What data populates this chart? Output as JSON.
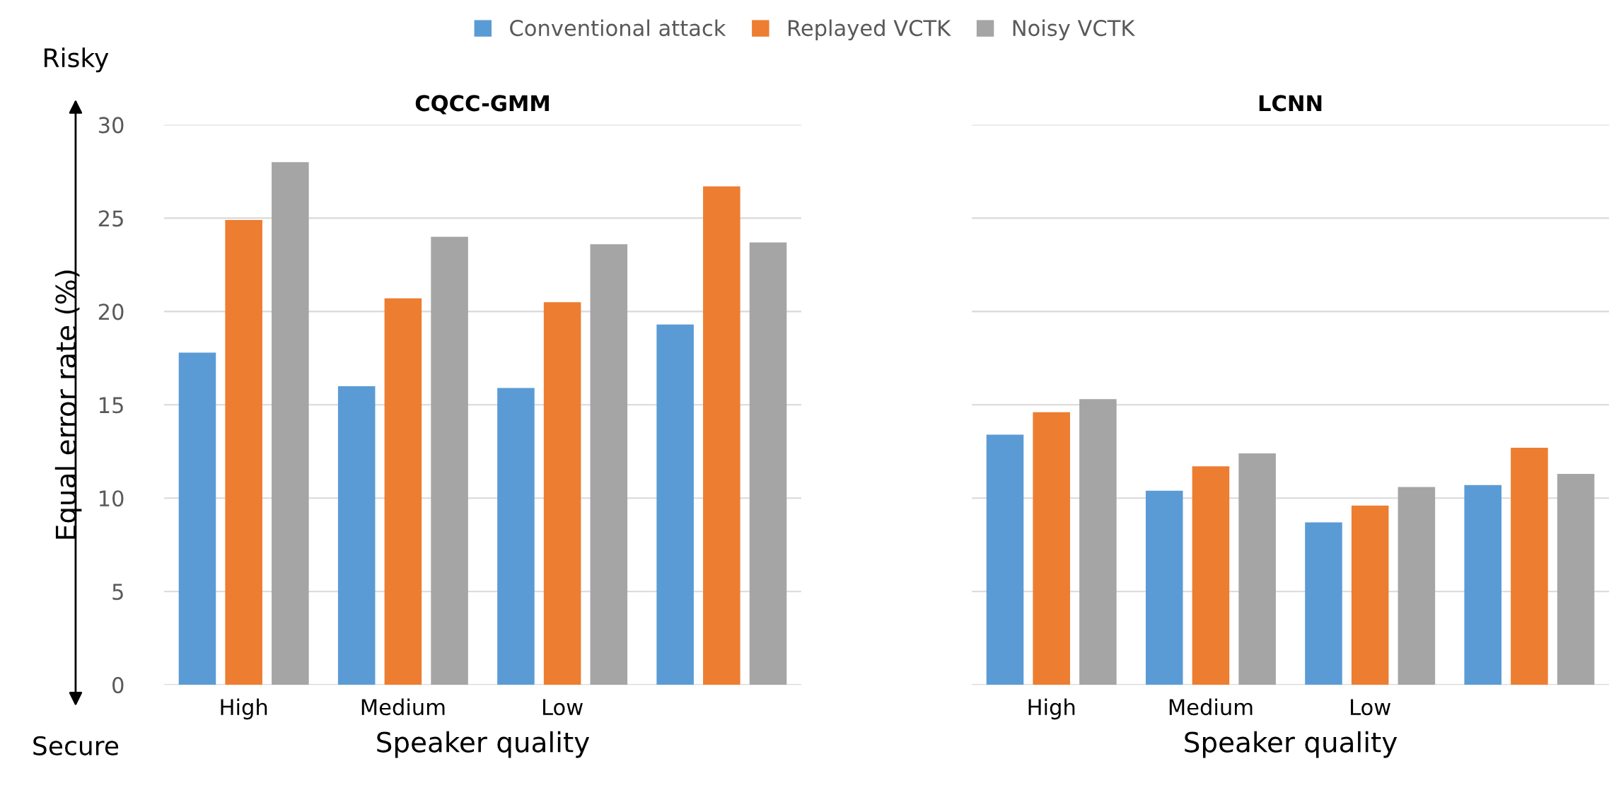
{
  "chart_data": [
    {
      "type": "bar",
      "title": "CQCC-GMM",
      "xlabel": "Speaker quality",
      "ylabel": "Equal error rate (%)",
      "annotations": [
        "Risky",
        "Secure"
      ],
      "categories": [
        "High",
        "Medium",
        "Low",
        null
      ],
      "series": [
        {
          "name": "Conventional attack",
          "color": "#5b9bd5",
          "values": [
            17.8,
            16.0,
            15.9,
            19.3
          ]
        },
        {
          "name": "Replayed VCTK",
          "color": "#ed7d31",
          "values": [
            24.9,
            20.7,
            20.5,
            26.7
          ]
        },
        {
          "name": "Noisy VCTK",
          "color": "#a5a5a5",
          "values": [
            28.0,
            24.0,
            23.6,
            23.7
          ]
        }
      ],
      "ylim": [
        0,
        30
      ],
      "yticks": [
        0,
        5,
        10,
        15,
        20,
        25,
        30
      ],
      "grid": "y",
      "legend": "top"
    },
    {
      "type": "bar",
      "title": "LCNN",
      "xlabel": "Speaker quality",
      "categories": [
        "High",
        "Medium",
        "Low",
        null
      ],
      "series": [
        {
          "color": "#5b9bd5",
          "values": [
            13.4,
            10.4,
            8.7,
            10.7
          ]
        },
        {
          "color": "#ed7d31",
          "values": [
            14.6,
            11.7,
            9.6,
            12.7
          ]
        },
        {
          "color": "#a5a5a5",
          "values": [
            15.3,
            12.4,
            10.6,
            11.3
          ]
        }
      ],
      "ylim": [
        0,
        30
      ],
      "yticks": [
        0,
        5,
        10,
        15,
        20,
        25,
        30
      ],
      "grid": "y",
      "tick_labels": "x"
    }
  ]
}
